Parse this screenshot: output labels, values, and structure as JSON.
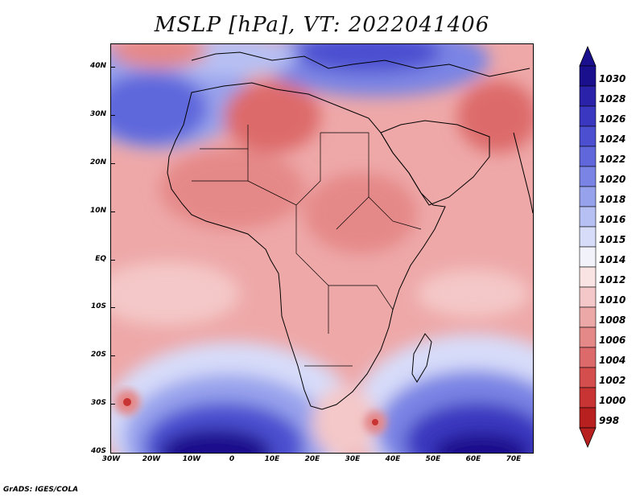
{
  "title": "MSLP [hPa], VT: 2022041406",
  "map": {
    "lat_ticks": [
      "40N",
      "30N",
      "20N",
      "10N",
      "EQ",
      "10S",
      "20S",
      "30S",
      "40S"
    ],
    "lon_ticks": [
      "30W",
      "20W",
      "10W",
      "0",
      "10E",
      "20E",
      "30E",
      "40E",
      "50E",
      "60E",
      "70E"
    ]
  },
  "colorbar": {
    "labels": [
      "1030",
      "1028",
      "1026",
      "1024",
      "1022",
      "1020",
      "1018",
      "1016",
      "1015",
      "1014",
      "1012",
      "1010",
      "1008",
      "1006",
      "1004",
      "1002",
      "1000",
      "998"
    ],
    "colors": [
      "#1a0f8c",
      "#2a22a8",
      "#3a38c0",
      "#4b4fd0",
      "#5f67db",
      "#7a84e4",
      "#97a2ec",
      "#b7c0f3",
      "#d7dcf9",
      "#f2f2fb",
      "#f9e3e3",
      "#f4c8c8",
      "#eca7a7",
      "#e58888",
      "#dd6a6a",
      "#d44e4e",
      "#c83333",
      "#b81f1f"
    ],
    "top_arrow_color": "#1a0f8c",
    "bottom_arrow_color": "#b81f1f"
  },
  "footer": "GrADS: IGES/COLA"
}
